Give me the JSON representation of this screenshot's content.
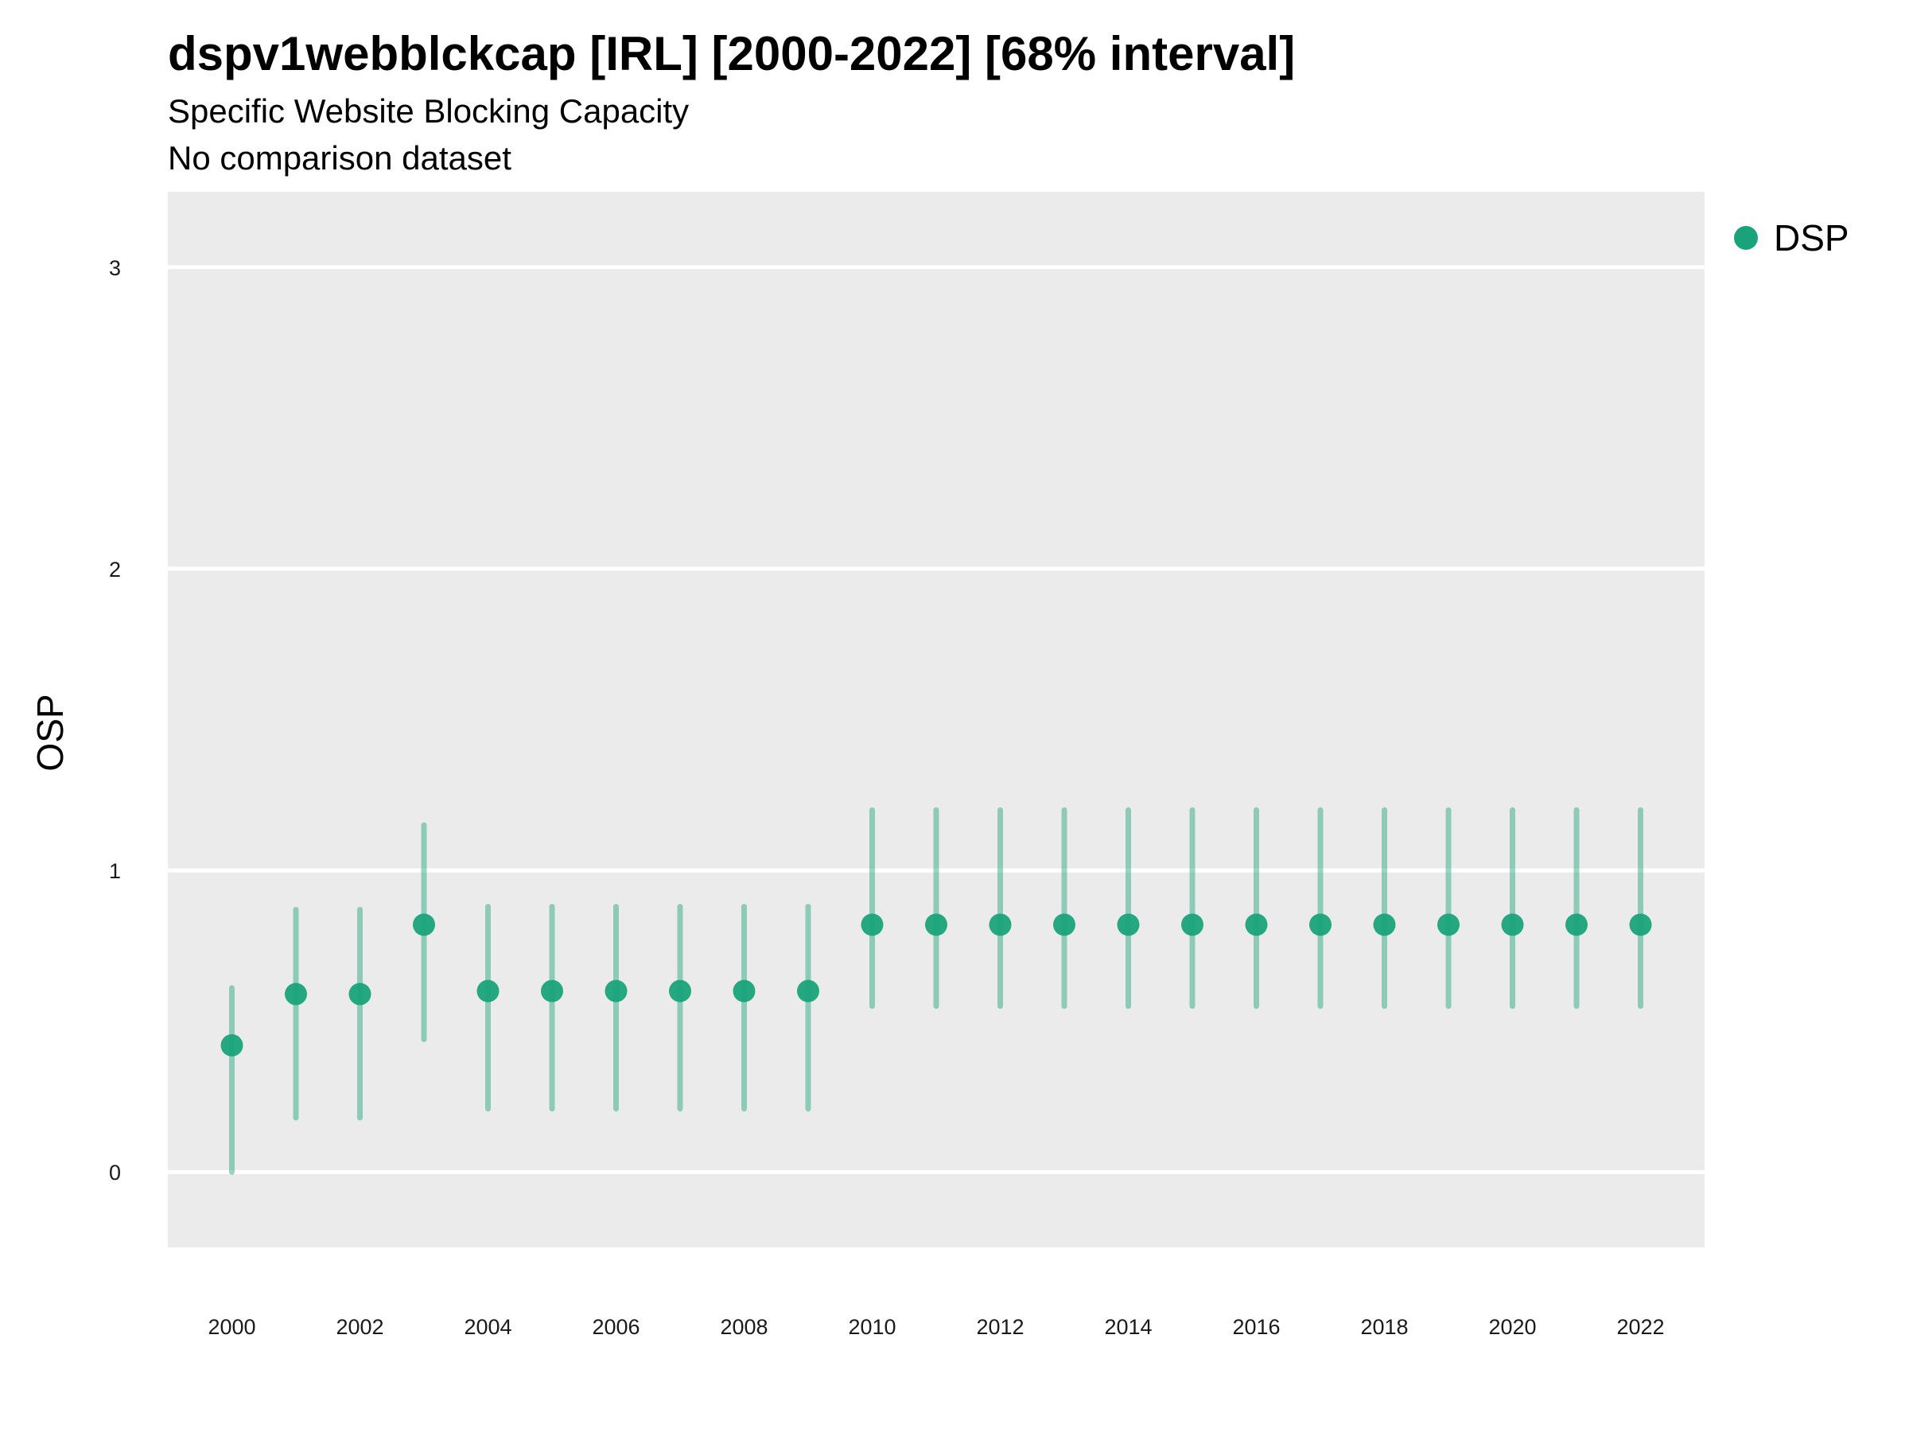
{
  "title": "dspv1webblckcap [IRL] [2000-2022] [68% interval]",
  "subtitle": "Specific Website Blocking Capacity",
  "subtitle2": "No comparison dataset",
  "colors": {
    "panel": "#ebebeb",
    "grid": "#ffffff",
    "series": "#1aa37a"
  },
  "chart_data": {
    "type": "scatter",
    "title": "dspv1webblckcap [IRL] [2000-2022] [68% interval]",
    "subtitle": "Specific Website Blocking Capacity",
    "xlabel": "",
    "ylabel": "OSP",
    "xlim": [
      1999,
      2023
    ],
    "ylim": [
      -0.25,
      3.25
    ],
    "x_ticks": [
      "2000",
      "2002",
      "2004",
      "2006",
      "2008",
      "2010",
      "2012",
      "2014",
      "2016",
      "2018",
      "2020",
      "2022"
    ],
    "y_ticks": [
      "0",
      "1",
      "2",
      "3"
    ],
    "grid": "on",
    "legend_position": "right",
    "series": [
      {
        "name": "DSP",
        "x": [
          2000,
          2001,
          2002,
          2003,
          2004,
          2005,
          2006,
          2007,
          2008,
          2009,
          2010,
          2011,
          2012,
          2013,
          2014,
          2015,
          2016,
          2017,
          2018,
          2019,
          2020,
          2021,
          2022
        ],
        "y": [
          0.42,
          0.59,
          0.59,
          0.82,
          0.6,
          0.6,
          0.6,
          0.6,
          0.6,
          0.6,
          0.82,
          0.82,
          0.82,
          0.82,
          0.82,
          0.82,
          0.82,
          0.82,
          0.82,
          0.82,
          0.82,
          0.82,
          0.82
        ],
        "lower": [
          0.0,
          0.18,
          0.18,
          0.44,
          0.21,
          0.21,
          0.21,
          0.21,
          0.21,
          0.21,
          0.55,
          0.55,
          0.55,
          0.55,
          0.55,
          0.55,
          0.55,
          0.55,
          0.55,
          0.55,
          0.55,
          0.55,
          0.55
        ],
        "upper": [
          0.61,
          0.87,
          0.87,
          1.15,
          0.88,
          0.88,
          0.88,
          0.88,
          0.88,
          0.88,
          1.2,
          1.2,
          1.2,
          1.2,
          1.2,
          1.2,
          1.2,
          1.2,
          1.2,
          1.2,
          1.2,
          1.2,
          1.2
        ]
      }
    ]
  }
}
